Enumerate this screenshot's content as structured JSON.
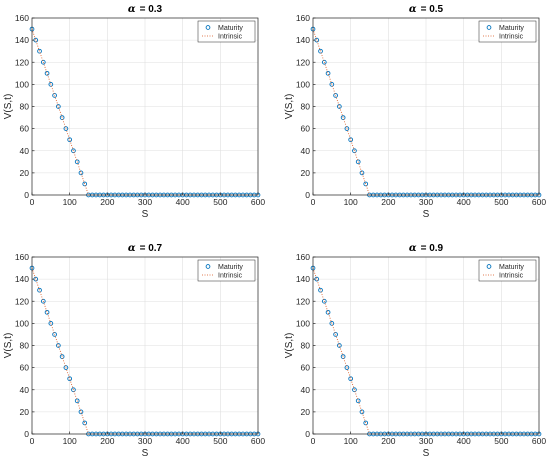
{
  "chart_data": [
    {
      "type": "scatter",
      "title_symbol": "α",
      "title_value": "= 0.3",
      "xlabel": "S",
      "ylabel": "V(S,t)",
      "xlim": [
        0,
        600
      ],
      "ylim": [
        0,
        160
      ],
      "xticks": [
        "0",
        "100",
        "200",
        "300",
        "400",
        "500",
        "600"
      ],
      "yticks": [
        "0",
        "20",
        "40",
        "60",
        "80",
        "100",
        "120",
        "140",
        "160"
      ],
      "grid": true,
      "legend_position": "top-right",
      "series": [
        {
          "name": "Maturity",
          "style": "circles",
          "color": "#0072BD",
          "x": [
            0,
            10,
            20,
            30,
            40,
            50,
            60,
            70,
            80,
            90,
            100,
            110,
            120,
            130,
            140,
            150,
            160,
            170,
            180,
            190,
            200,
            210,
            220,
            230,
            240,
            250,
            260,
            270,
            280,
            290,
            300,
            310,
            320,
            330,
            340,
            350,
            360,
            370,
            380,
            390,
            400,
            410,
            420,
            430,
            440,
            450,
            460,
            470,
            480,
            490,
            500,
            510,
            520,
            530,
            540,
            550,
            560,
            570,
            580,
            590,
            600
          ],
          "y": [
            150,
            140,
            130,
            120,
            110,
            100,
            90,
            80,
            70,
            60,
            50,
            40,
            30,
            20,
            10,
            0,
            0,
            0,
            0,
            0,
            0,
            0,
            0,
            0,
            0,
            0,
            0,
            0,
            0,
            0,
            0,
            0,
            0,
            0,
            0,
            0,
            0,
            0,
            0,
            0,
            0,
            0,
            0,
            0,
            0,
            0,
            0,
            0,
            0,
            0,
            0,
            0,
            0,
            0,
            0,
            0,
            0,
            0,
            0,
            0,
            0
          ]
        },
        {
          "name": "Intrinsic",
          "style": "dotted",
          "color": "#D95319",
          "x": [
            0,
            150,
            600
          ],
          "y": [
            150,
            0,
            0
          ]
        }
      ]
    },
    {
      "type": "scatter",
      "title_symbol": "α",
      "title_value": "= 0.5",
      "xlabel": "S",
      "ylabel": "V(S,t)",
      "xlim": [
        0,
        600
      ],
      "ylim": [
        0,
        160
      ],
      "xticks": [
        "0",
        "100",
        "200",
        "300",
        "400",
        "500",
        "600"
      ],
      "yticks": [
        "0",
        "20",
        "40",
        "60",
        "80",
        "100",
        "120",
        "140",
        "160"
      ],
      "grid": true,
      "legend_position": "top-right",
      "series": [
        {
          "name": "Maturity",
          "style": "circles",
          "color": "#0072BD",
          "x": [
            0,
            10,
            20,
            30,
            40,
            50,
            60,
            70,
            80,
            90,
            100,
            110,
            120,
            130,
            140,
            150,
            160,
            170,
            180,
            190,
            200,
            210,
            220,
            230,
            240,
            250,
            260,
            270,
            280,
            290,
            300,
            310,
            320,
            330,
            340,
            350,
            360,
            370,
            380,
            390,
            400,
            410,
            420,
            430,
            440,
            450,
            460,
            470,
            480,
            490,
            500,
            510,
            520,
            530,
            540,
            550,
            560,
            570,
            580,
            590,
            600
          ],
          "y": [
            150,
            140,
            130,
            120,
            110,
            100,
            90,
            80,
            70,
            60,
            50,
            40,
            30,
            20,
            10,
            0,
            0,
            0,
            0,
            0,
            0,
            0,
            0,
            0,
            0,
            0,
            0,
            0,
            0,
            0,
            0,
            0,
            0,
            0,
            0,
            0,
            0,
            0,
            0,
            0,
            0,
            0,
            0,
            0,
            0,
            0,
            0,
            0,
            0,
            0,
            0,
            0,
            0,
            0,
            0,
            0,
            0,
            0,
            0,
            0,
            0
          ]
        },
        {
          "name": "Intrinsic",
          "style": "dotted",
          "color": "#D95319",
          "x": [
            0,
            150,
            600
          ],
          "y": [
            150,
            0,
            0
          ]
        }
      ]
    },
    {
      "type": "scatter",
      "title_symbol": "α",
      "title_value": "= 0.7",
      "xlabel": "S",
      "ylabel": "V(S,t)",
      "xlim": [
        0,
        600
      ],
      "ylim": [
        0,
        160
      ],
      "xticks": [
        "0",
        "100",
        "200",
        "300",
        "400",
        "500",
        "600"
      ],
      "yticks": [
        "0",
        "20",
        "40",
        "60",
        "80",
        "100",
        "120",
        "140",
        "160"
      ],
      "grid": true,
      "legend_position": "top-right",
      "series": [
        {
          "name": "Maturity",
          "style": "circles",
          "color": "#0072BD",
          "x": [
            0,
            10,
            20,
            30,
            40,
            50,
            60,
            70,
            80,
            90,
            100,
            110,
            120,
            130,
            140,
            150,
            160,
            170,
            180,
            190,
            200,
            210,
            220,
            230,
            240,
            250,
            260,
            270,
            280,
            290,
            300,
            310,
            320,
            330,
            340,
            350,
            360,
            370,
            380,
            390,
            400,
            410,
            420,
            430,
            440,
            450,
            460,
            470,
            480,
            490,
            500,
            510,
            520,
            530,
            540,
            550,
            560,
            570,
            580,
            590,
            600
          ],
          "y": [
            150,
            140,
            130,
            120,
            110,
            100,
            90,
            80,
            70,
            60,
            50,
            40,
            30,
            20,
            10,
            0,
            0,
            0,
            0,
            0,
            0,
            0,
            0,
            0,
            0,
            0,
            0,
            0,
            0,
            0,
            0,
            0,
            0,
            0,
            0,
            0,
            0,
            0,
            0,
            0,
            0,
            0,
            0,
            0,
            0,
            0,
            0,
            0,
            0,
            0,
            0,
            0,
            0,
            0,
            0,
            0,
            0,
            0,
            0,
            0,
            0
          ]
        },
        {
          "name": "Intrinsic",
          "style": "dotted",
          "color": "#D95319",
          "x": [
            0,
            150,
            600
          ],
          "y": [
            150,
            0,
            0
          ]
        }
      ]
    },
    {
      "type": "scatter",
      "title_symbol": "α",
      "title_value": "= 0.9",
      "xlabel": "S",
      "ylabel": "V(S,t)",
      "xlim": [
        0,
        600
      ],
      "ylim": [
        0,
        160
      ],
      "xticks": [
        "0",
        "100",
        "200",
        "300",
        "400",
        "500",
        "600"
      ],
      "yticks": [
        "0",
        "20",
        "40",
        "60",
        "80",
        "100",
        "120",
        "140",
        "160"
      ],
      "grid": true,
      "legend_position": "top-right",
      "series": [
        {
          "name": "Maturity",
          "style": "circles",
          "color": "#0072BD",
          "x": [
            0,
            10,
            20,
            30,
            40,
            50,
            60,
            70,
            80,
            90,
            100,
            110,
            120,
            130,
            140,
            150,
            160,
            170,
            180,
            190,
            200,
            210,
            220,
            230,
            240,
            250,
            260,
            270,
            280,
            290,
            300,
            310,
            320,
            330,
            340,
            350,
            360,
            370,
            380,
            390,
            400,
            410,
            420,
            430,
            440,
            450,
            460,
            470,
            480,
            490,
            500,
            510,
            520,
            530,
            540,
            550,
            560,
            570,
            580,
            590,
            600
          ],
          "y": [
            150,
            140,
            130,
            120,
            110,
            100,
            90,
            80,
            70,
            60,
            50,
            40,
            30,
            20,
            10,
            0,
            0,
            0,
            0,
            0,
            0,
            0,
            0,
            0,
            0,
            0,
            0,
            0,
            0,
            0,
            0,
            0,
            0,
            0,
            0,
            0,
            0,
            0,
            0,
            0,
            0,
            0,
            0,
            0,
            0,
            0,
            0,
            0,
            0,
            0,
            0,
            0,
            0,
            0,
            0,
            0,
            0,
            0,
            0,
            0,
            0
          ]
        },
        {
          "name": "Intrinsic",
          "style": "dotted",
          "color": "#D95319",
          "x": [
            0,
            150,
            600
          ],
          "y": [
            150,
            0,
            0
          ]
        }
      ]
    }
  ]
}
